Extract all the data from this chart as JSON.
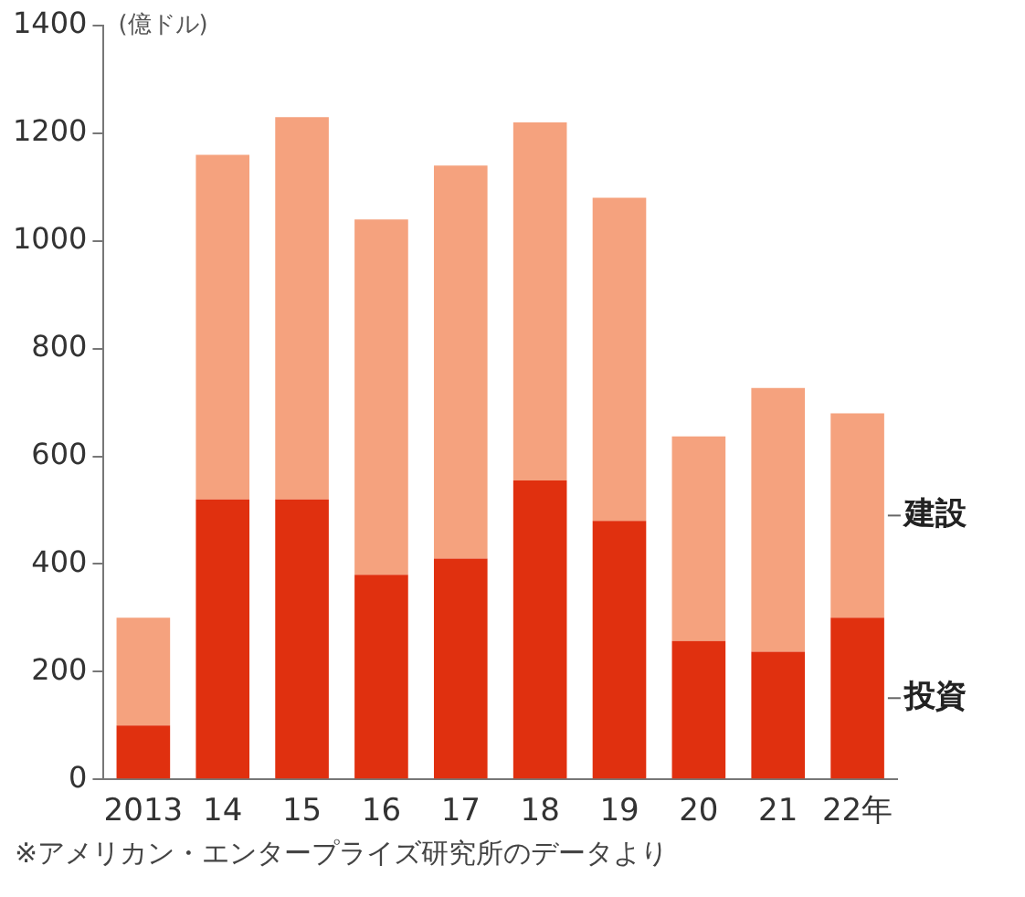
{
  "chart_data": {
    "type": "bar",
    "stacked": true,
    "ylabel": "(億ドル)",
    "categories": [
      "2013",
      "14",
      "15",
      "16",
      "17",
      "18",
      "19",
      "20",
      "21",
      "22年"
    ],
    "series": [
      {
        "name": "投資",
        "color": "#e0300f",
        "values": [
          100,
          520,
          520,
          380,
          410,
          555,
          480,
          257,
          237,
          300
        ]
      },
      {
        "name": "建設",
        "color": "#f5a27e",
        "values": [
          200,
          640,
          710,
          660,
          730,
          665,
          600,
          380,
          490,
          380
        ]
      }
    ],
    "ylim": [
      0,
      1400
    ],
    "yticks": [
      0,
      200,
      400,
      600,
      800,
      1000,
      1200,
      1400
    ],
    "grid": false,
    "legend": false,
    "annotations": [
      "※アメリカン・エンタープライズ研究所のデータより"
    ]
  }
}
